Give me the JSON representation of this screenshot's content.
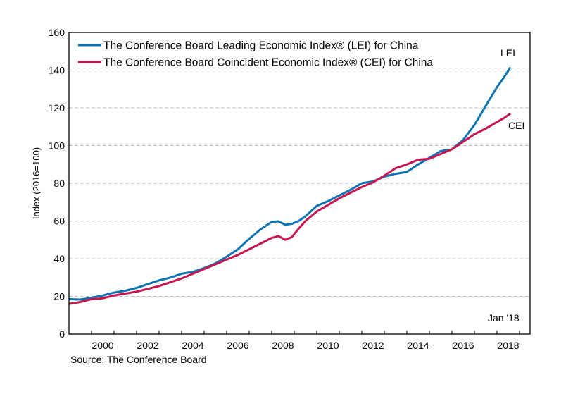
{
  "chart_data": {
    "type": "line",
    "title": "",
    "xlabel": "",
    "ylabel": "Index (2016=100)",
    "ylim": [
      0,
      160
    ],
    "xlim": [
      1999.0,
      2019.5
    ],
    "yticks": [
      0,
      20,
      40,
      60,
      80,
      100,
      120,
      140,
      160
    ],
    "xtick_labels": [
      "2000",
      "2002",
      "2004",
      "2006",
      "2008",
      "2010",
      "2012",
      "2014",
      "2016",
      "2018"
    ],
    "grid": "horizontal-dashed",
    "legend_position": "top-left",
    "annotations": {
      "lei_end_label": "LEI",
      "cei_end_label": "CEI",
      "date_label": "Jan '18"
    },
    "source": "Source: The Conference Board",
    "series": [
      {
        "name": "The Conference Board Leading Economic Index® (LEI) for China",
        "short": "LEI",
        "color": "#0e74b1",
        "x": [
          1999.0,
          1999.5,
          2000.0,
          2000.5,
          2001.0,
          2001.5,
          2002.0,
          2002.5,
          2003.0,
          2003.5,
          2004.0,
          2004.5,
          2005.0,
          2005.5,
          2006.0,
          2006.5,
          2007.0,
          2007.5,
          2008.0,
          2008.3,
          2008.6,
          2008.9,
          2009.2,
          2009.5,
          2010.0,
          2010.5,
          2011.0,
          2011.5,
          2012.0,
          2012.5,
          2013.0,
          2013.5,
          2014.0,
          2014.5,
          2015.0,
          2015.5,
          2016.0,
          2016.5,
          2017.0,
          2017.5,
          2018.0,
          2018.3,
          2018.6
        ],
        "values": [
          18.5,
          18.3,
          19.3,
          20.5,
          22.0,
          23.0,
          24.5,
          26.5,
          28.5,
          30.0,
          32.0,
          33.0,
          35.0,
          37.5,
          41.0,
          45.0,
          50.5,
          55.5,
          59.5,
          59.8,
          58.0,
          58.5,
          60.0,
          62.5,
          68.0,
          70.5,
          73.5,
          76.5,
          80.0,
          81.0,
          83.5,
          85.0,
          86.0,
          90.0,
          93.5,
          97.0,
          98.0,
          103.0,
          111.0,
          121.0,
          131.0,
          136.0,
          141.5
        ]
      },
      {
        "name": "The Conference Board Coincident Economic Index® (CEI) for China",
        "short": "CEI",
        "color": "#c8154f",
        "x": [
          1999.0,
          1999.5,
          2000.0,
          2000.5,
          2001.0,
          2001.5,
          2002.0,
          2002.5,
          2003.0,
          2003.5,
          2004.0,
          2004.5,
          2005.0,
          2005.5,
          2006.0,
          2006.5,
          2007.0,
          2007.5,
          2008.0,
          2008.3,
          2008.6,
          2008.9,
          2009.2,
          2009.5,
          2010.0,
          2010.5,
          2011.0,
          2011.5,
          2012.0,
          2012.5,
          2013.0,
          2013.5,
          2014.0,
          2014.5,
          2015.0,
          2015.5,
          2016.0,
          2016.5,
          2017.0,
          2017.5,
          2018.0,
          2018.3,
          2018.6
        ],
        "values": [
          16.0,
          17.0,
          18.5,
          19.0,
          20.5,
          21.5,
          22.5,
          24.0,
          25.5,
          27.5,
          29.5,
          32.0,
          34.5,
          37.0,
          39.5,
          42.0,
          45.0,
          48.0,
          51.0,
          52.0,
          50.0,
          51.5,
          56.0,
          60.0,
          65.0,
          68.5,
          72.0,
          75.0,
          78.0,
          80.5,
          84.0,
          88.0,
          90.0,
          92.5,
          93.0,
          95.5,
          98.0,
          102.0,
          106.0,
          109.0,
          112.5,
          114.5,
          117.0
        ]
      }
    ]
  }
}
